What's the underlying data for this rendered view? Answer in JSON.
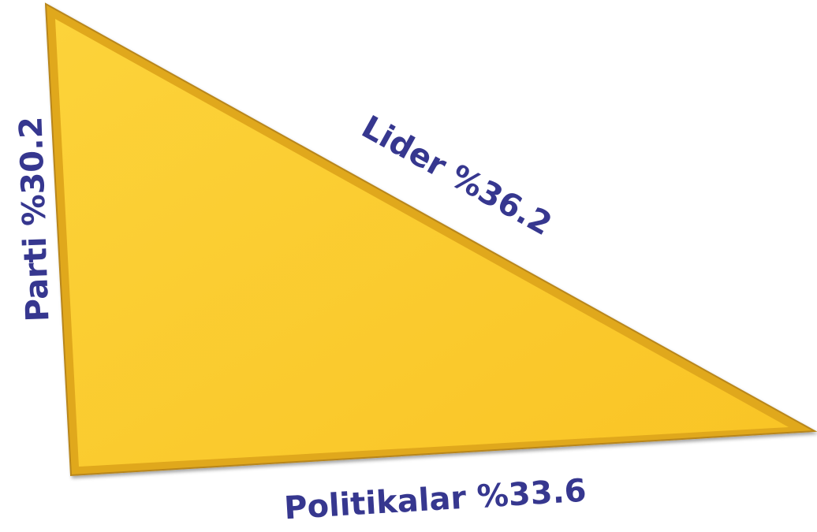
{
  "triangle": {
    "sides": [
      {
        "label": "Parti %30.2"
      },
      {
        "label": "Lider %36.2"
      },
      {
        "label": "Politikalar %33.6"
      }
    ]
  }
}
